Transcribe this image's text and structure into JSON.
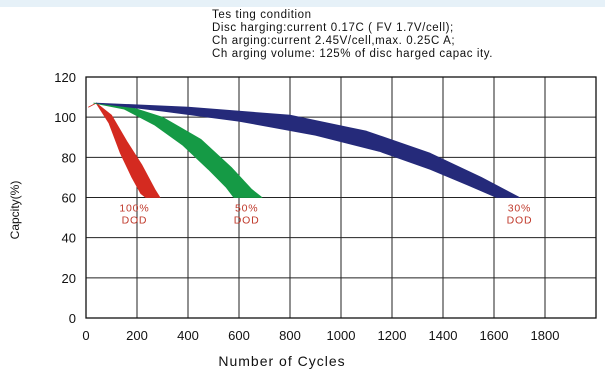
{
  "testing_condition": [
    "Tes ting condition",
    "Disc harging:current 0.17C ( FV 1.7V/cell);",
    "Ch arging:current 2.45V/cell,max. 0.25C A;",
    "Ch arging volume: 125% of disc harged capac ity."
  ],
  "chart_data": {
    "type": "area",
    "xlabel": "Number of Cycles",
    "ylabel": "Capcity(%)",
    "xlim": [
      0,
      2000
    ],
    "ylim": [
      0,
      120
    ],
    "x_ticks": [
      0,
      200,
      400,
      600,
      800,
      1000,
      1200,
      1400,
      1600,
      1800
    ],
    "y_ticks": [
      0,
      20,
      40,
      60,
      80,
      100,
      120
    ],
    "x_grid_step": 200,
    "grid": true,
    "series": [
      {
        "name": "100% DOD",
        "label_lines": [
          "100%",
          "DOD"
        ],
        "color": "#d42a20",
        "label_color": "#c0392b",
        "label_at": {
          "x": 190,
          "y": 53
        },
        "upper": [
          [
            10,
            105
          ],
          [
            40,
            107
          ],
          [
            100,
            101
          ],
          [
            160,
            88
          ],
          [
            220,
            76
          ],
          [
            270,
            64
          ],
          [
            290,
            60
          ]
        ],
        "lower": [
          [
            10,
            105
          ],
          [
            40,
            107
          ],
          [
            90,
            97
          ],
          [
            135,
            82
          ],
          [
            180,
            70
          ],
          [
            215,
            62
          ],
          [
            235,
            60
          ]
        ]
      },
      {
        "name": "50% DOD",
        "label_lines": [
          "50%",
          "DOD"
        ],
        "color": "#159a45",
        "label_color": "#c0392b",
        "label_at": {
          "x": 630,
          "y": 53
        },
        "upper": [
          [
            30,
            107
          ],
          [
            150,
            106
          ],
          [
            300,
            100
          ],
          [
            450,
            89
          ],
          [
            570,
            75
          ],
          [
            650,
            64
          ],
          [
            690,
            60
          ]
        ],
        "lower": [
          [
            30,
            107
          ],
          [
            150,
            104
          ],
          [
            270,
            96
          ],
          [
            380,
            86
          ],
          [
            480,
            74
          ],
          [
            550,
            65
          ],
          [
            580,
            60
          ]
        ]
      },
      {
        "name": "30% DOD",
        "label_lines": [
          "30%",
          "DOD"
        ],
        "color": "#252a7a",
        "label_color": "#c0392b",
        "label_at": {
          "x": 1700,
          "y": 53
        },
        "upper": [
          [
            40,
            107
          ],
          [
            400,
            105
          ],
          [
            800,
            101
          ],
          [
            1100,
            93
          ],
          [
            1350,
            82
          ],
          [
            1550,
            70
          ],
          [
            1700,
            60
          ]
        ],
        "lower": [
          [
            40,
            107
          ],
          [
            300,
            103
          ],
          [
            600,
            98
          ],
          [
            900,
            91
          ],
          [
            1150,
            83
          ],
          [
            1350,
            74
          ],
          [
            1500,
            66
          ],
          [
            1610,
            60
          ]
        ]
      }
    ]
  }
}
